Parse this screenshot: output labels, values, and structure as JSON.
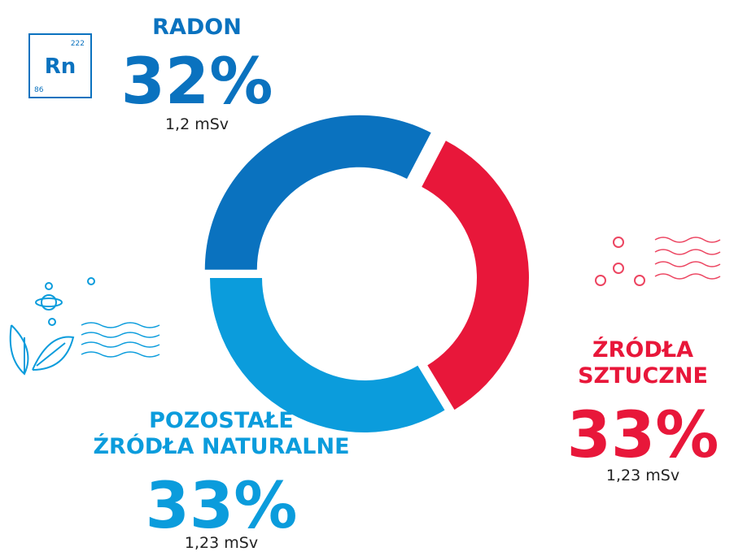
{
  "chart_data": {
    "type": "donut",
    "categories": [
      "RADON",
      "ŹRÓDŁA\nSZTUCZNE",
      "POZOSTAŁE\nŹRÓDŁA NATURALNE"
    ],
    "values": [
      32,
      33,
      33
    ],
    "value_labels": [
      "32%",
      "33%",
      "33%"
    ],
    "doses": [
      "1,2 mSv",
      "1,23 mSv",
      "1,23 mSv"
    ],
    "colors": [
      "#0a72bf",
      "#e8173a",
      "#0b9cdc"
    ]
  },
  "icon": {
    "symbol": "Rn",
    "mass": "222",
    "number": "86"
  }
}
